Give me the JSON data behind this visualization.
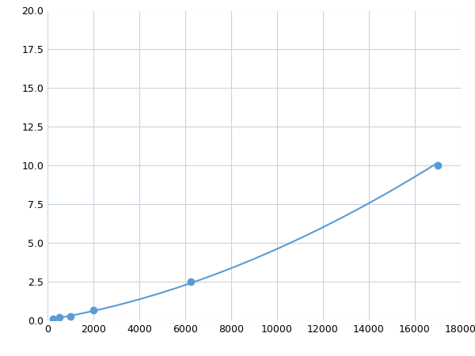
{
  "x": [
    250,
    500,
    1000,
    2000,
    6250,
    17000
  ],
  "y": [
    0.1,
    0.2,
    0.25,
    0.65,
    2.5,
    10.0
  ],
  "line_color": "#5b9bd5",
  "marker_color": "#5b9bd5",
  "marker_size": 6,
  "xlim": [
    0,
    18000
  ],
  "ylim": [
    0,
    20.0
  ],
  "xticks": [
    0,
    2000,
    4000,
    6000,
    8000,
    10000,
    12000,
    14000,
    16000,
    18000
  ],
  "yticks": [
    0.0,
    2.5,
    5.0,
    7.5,
    10.0,
    12.5,
    15.0,
    17.5,
    20.0
  ],
  "grid_color": "#c8d4e0",
  "background_color": "#ffffff",
  "figure_bg": "#ffffff"
}
